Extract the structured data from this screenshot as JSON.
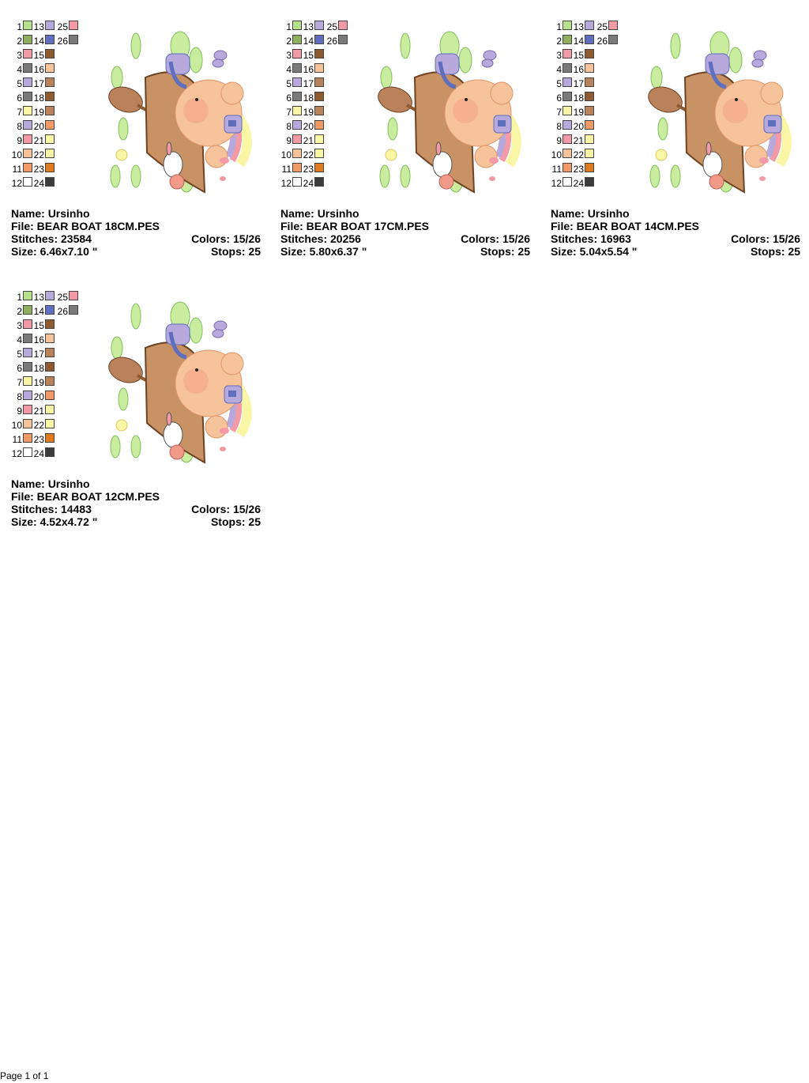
{
  "legend_colors": {
    "1": "#b6e08a",
    "2": "#8fae60",
    "3": "#f29aa6",
    "4": "#7a7a7a",
    "5": "#b7a9dc",
    "6": "#7a7a7a",
    "7": "#fbf6a6",
    "8": "#b7a9dc",
    "9": "#f29aa6",
    "10": "#f7c39a",
    "11": "#f29a66",
    "12": "#ffffff",
    "13": "#b7a9dc",
    "14": "#5f6fbd",
    "15": "#8e5a30",
    "16": "#f7c39a",
    "17": "#b9825b",
    "18": "#8e5a30",
    "19": "#b9825b",
    "20": "#f29a66",
    "21": "#fbf6a6",
    "22": "#fbf6a6",
    "23": "#e07a1e",
    "24": "#3c3c3c",
    "25": "#f29aa6",
    "26": "#7a7a7a"
  },
  "designs": [
    {
      "name_label": "Name:",
      "name": "Ursinho",
      "file_label": "File:",
      "file": "BEAR BOAT 18CM.PES",
      "stitches_label": "Stitches:",
      "stitches": "23584",
      "colors_label": "Colors:",
      "colors": "15/26",
      "size_label": "Size:",
      "size": "6.46x7.10 \"",
      "stops_label": "Stops:",
      "stops": "25"
    },
    {
      "name_label": "Name:",
      "name": "Ursinho",
      "file_label": "File:",
      "file": "BEAR BOAT 17CM.PES",
      "stitches_label": "Stitches:",
      "stitches": "20256",
      "colors_label": "Colors:",
      "colors": "15/26",
      "size_label": "Size:",
      "size": "5.80x6.37 \"",
      "stops_label": "Stops:",
      "stops": "25"
    },
    {
      "name_label": "Name:",
      "name": "Ursinho",
      "file_label": "File:",
      "file": "BEAR BOAT 14CM.PES",
      "stitches_label": "Stitches:",
      "stitches": "16963",
      "colors_label": "Colors:",
      "colors": "15/26",
      "size_label": "Size:",
      "size": "5.04x5.54 \"",
      "stops_label": "Stops:",
      "stops": "25"
    },
    {
      "name_label": "Name:",
      "name": "Ursinho",
      "file_label": "File:",
      "file": "BEAR BOAT 12CM.PES",
      "stitches_label": "Stitches:",
      "stitches": "14483",
      "colors_label": "Colors:",
      "colors": "15/26",
      "size_label": "Size:",
      "size": "4.52x4.72 \"",
      "stops_label": "Stops:",
      "stops": "25"
    }
  ],
  "footer": {
    "page_text": "Page 1 of 1"
  }
}
